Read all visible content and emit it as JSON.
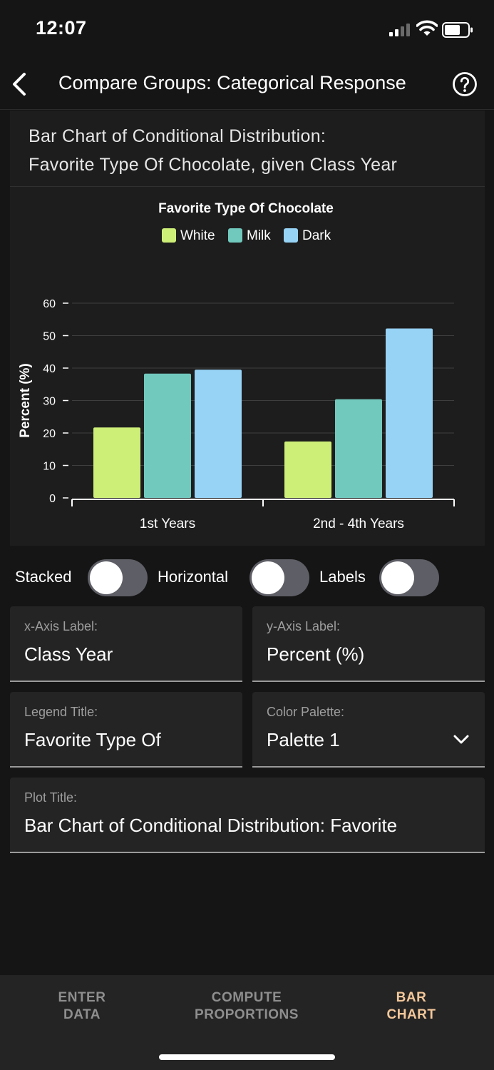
{
  "status_bar": {
    "time": "12:07"
  },
  "header": {
    "title": "Compare Groups: Categorical Response"
  },
  "card": {
    "heading_line1": "Bar Chart of Conditional Distribution:",
    "heading_line2": "Favorite Type Of Chocolate, given Class Year"
  },
  "chart_data": {
    "type": "bar",
    "legend_title": "Favorite Type Of Chocolate",
    "categories": [
      "1st Years",
      "2nd - 4th Years"
    ],
    "series": [
      {
        "name": "White",
        "color": "#cdef78",
        "values": [
          21.7,
          17.4
        ]
      },
      {
        "name": "Milk",
        "color": "#71c9be",
        "values": [
          38.3,
          30.4
        ]
      },
      {
        "name": "Dark",
        "color": "#96d3f5",
        "values": [
          39.5,
          52.2
        ]
      }
    ],
    "xlabel": "Class Year",
    "ylabel": "Percent (%)",
    "ylim": [
      0,
      60
    ],
    "yticks": [
      0,
      10,
      20,
      30,
      40,
      50,
      60
    ],
    "grid": true,
    "legend_position": "top-center"
  },
  "toggles": {
    "stacked": {
      "label": "Stacked",
      "on": false
    },
    "horizontal": {
      "label": "Horizontal",
      "on": false
    },
    "labels": {
      "label": "Labels",
      "on": false
    }
  },
  "fields": {
    "x_axis": {
      "label": "x-Axis Label:",
      "value": "Class Year"
    },
    "y_axis": {
      "label": "y-Axis Label:",
      "value": "Percent (%)"
    },
    "legend_title": {
      "label": "Legend Title:",
      "value": "Favorite Type Of"
    },
    "color_palette": {
      "label": "Color Palette:",
      "value": "Palette 1"
    },
    "plot_title": {
      "label": "Plot Title:",
      "value": "Bar Chart of Conditional Distribution: Favorite"
    }
  },
  "tabs": [
    {
      "line1": "ENTER",
      "line2": "DATA"
    },
    {
      "line1": "COMPUTE",
      "line2": "PROPORTIONS"
    },
    {
      "line1": "BAR",
      "line2": "CHART"
    }
  ],
  "colors": {
    "accent": "#f3c79a",
    "background": "#151515",
    "card": "#1d1d1d"
  }
}
